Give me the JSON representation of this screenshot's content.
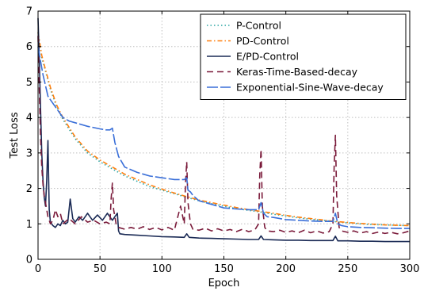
{
  "chart_data": {
    "type": "line",
    "xlabel": "Epoch",
    "ylabel": "Test Loss",
    "xlim": [
      0,
      300
    ],
    "ylim": [
      0,
      7
    ],
    "xticks": [
      "0",
      "50",
      "100",
      "150",
      "200",
      "250",
      "300"
    ],
    "yticks": [
      "0",
      "1",
      "2",
      "3",
      "4",
      "5",
      "6",
      "7"
    ],
    "grid": true,
    "legend_position": "top-right",
    "series": [
      {
        "name": "P-Control",
        "color": "#2ca6a4",
        "style": "dotted",
        "x": [
          0,
          3,
          6,
          10,
          15,
          20,
          30,
          40,
          50,
          60,
          70,
          80,
          90,
          100,
          110,
          120,
          130,
          140,
          150,
          160,
          170,
          180,
          190,
          200,
          210,
          220,
          230,
          240,
          250,
          260,
          270,
          280,
          290,
          300
        ],
        "y": [
          6.4,
          5.7,
          5.3,
          4.8,
          4.3,
          3.95,
          3.4,
          3.0,
          2.75,
          2.55,
          2.35,
          2.2,
          2.05,
          1.95,
          1.85,
          1.75,
          1.65,
          1.57,
          1.5,
          1.43,
          1.38,
          1.33,
          1.27,
          1.22,
          1.17,
          1.13,
          1.1,
          1.06,
          1.03,
          1.0,
          0.98,
          0.97,
          0.96,
          0.95
        ]
      },
      {
        "name": "PD-Control",
        "color": "#ff7f0e",
        "style": "dashdot",
        "x": [
          0,
          3,
          6,
          10,
          15,
          20,
          30,
          40,
          50,
          60,
          70,
          80,
          90,
          100,
          110,
          120,
          130,
          140,
          150,
          160,
          170,
          180,
          190,
          200,
          210,
          220,
          230,
          240,
          250,
          260,
          270,
          280,
          290,
          300
        ],
        "y": [
          6.4,
          5.75,
          5.35,
          4.85,
          4.35,
          4.0,
          3.45,
          3.05,
          2.8,
          2.6,
          2.4,
          2.25,
          2.1,
          1.98,
          1.87,
          1.77,
          1.67,
          1.6,
          1.53,
          1.46,
          1.4,
          1.35,
          1.3,
          1.24,
          1.19,
          1.15,
          1.11,
          1.07,
          1.04,
          1.01,
          0.99,
          0.97,
          0.96,
          0.95
        ]
      },
      {
        "name": "E/PD-Control",
        "color": "#1a2a55",
        "style": "solid",
        "x": [
          0,
          1,
          2,
          3,
          4,
          5,
          6,
          7,
          8,
          9,
          10,
          12,
          14,
          16,
          18,
          20,
          22,
          24,
          26,
          28,
          30,
          33,
          36,
          40,
          44,
          48,
          52,
          56,
          60,
          62,
          64,
          65,
          66,
          70,
          80,
          90,
          100,
          110,
          118,
          120,
          122,
          130,
          140,
          150,
          160,
          170,
          178,
          180,
          182,
          190,
          200,
          210,
          220,
          230,
          238,
          240,
          242,
          250,
          260,
          270,
          280,
          290,
          300
        ],
        "y": [
          6.8,
          5.6,
          4.3,
          3.0,
          2.2,
          1.75,
          1.5,
          2.2,
          3.35,
          1.4,
          1.05,
          0.95,
          0.9,
          1.0,
          0.95,
          1.1,
          1.0,
          1.05,
          1.7,
          1.15,
          1.05,
          1.2,
          1.1,
          1.3,
          1.1,
          1.25,
          1.1,
          1.3,
          1.1,
          1.2,
          1.3,
          0.8,
          0.72,
          0.7,
          0.68,
          0.66,
          0.64,
          0.63,
          0.62,
          0.72,
          0.62,
          0.6,
          0.59,
          0.58,
          0.57,
          0.56,
          0.56,
          0.66,
          0.56,
          0.55,
          0.54,
          0.54,
          0.53,
          0.53,
          0.53,
          0.65,
          0.52,
          0.52,
          0.51,
          0.51,
          0.5,
          0.5,
          0.5
        ]
      },
      {
        "name": "Keras-Time-Based-decay",
        "color": "#7a1a3a",
        "style": "dashed",
        "x": [
          0,
          1,
          2,
          3,
          4,
          5,
          6,
          8,
          10,
          12,
          14,
          16,
          18,
          20,
          25,
          30,
          35,
          40,
          45,
          50,
          55,
          58,
          59,
          60,
          61,
          63,
          65,
          70,
          75,
          80,
          85,
          90,
          95,
          100,
          105,
          110,
          115,
          118,
          119,
          120,
          121,
          123,
          125,
          130,
          135,
          140,
          145,
          150,
          155,
          160,
          165,
          170,
          175,
          178,
          179,
          180,
          181,
          183,
          185,
          190,
          195,
          200,
          205,
          210,
          215,
          220,
          225,
          230,
          235,
          238,
          239,
          240,
          241,
          243,
          245,
          250,
          255,
          260,
          265,
          270,
          275,
          280,
          285,
          290,
          295,
          300
        ],
        "y": [
          6.3,
          4.8,
          3.5,
          2.6,
          2.1,
          1.8,
          1.6,
          1.2,
          1.0,
          1.1,
          1.4,
          1.2,
          1.3,
          1.0,
          1.15,
          1.0,
          1.2,
          1.05,
          1.1,
          1.0,
          1.05,
          1.0,
          1.7,
          2.15,
          1.4,
          1.0,
          0.9,
          0.85,
          0.9,
          0.85,
          0.92,
          0.84,
          0.9,
          0.83,
          0.9,
          0.82,
          1.5,
          1.0,
          2.1,
          2.75,
          1.6,
          1.0,
          0.85,
          0.82,
          0.88,
          0.8,
          0.86,
          0.8,
          0.84,
          0.78,
          0.85,
          0.78,
          0.83,
          1.0,
          2.4,
          3.1,
          1.5,
          0.9,
          0.8,
          0.78,
          0.82,
          0.76,
          0.8,
          0.75,
          0.82,
          0.75,
          0.8,
          0.74,
          0.78,
          1.0,
          2.6,
          3.5,
          1.8,
          0.9,
          0.8,
          0.76,
          0.8,
          0.74,
          0.78,
          0.73,
          0.77,
          0.73,
          0.76,
          0.72,
          0.75,
          0.8
        ]
      },
      {
        "name": "Exponential-Sine-Wave-decay",
        "color": "#3a6fd8",
        "style": "longdash",
        "x": [
          0,
          2,
          4,
          6,
          8,
          10,
          15,
          20,
          25,
          30,
          40,
          50,
          55,
          58,
          60,
          62,
          65,
          70,
          80,
          90,
          100,
          110,
          118,
          120,
          121,
          123,
          125,
          130,
          140,
          150,
          160,
          170,
          178,
          180,
          182,
          185,
          190,
          200,
          210,
          220,
          230,
          238,
          240,
          242,
          245,
          250,
          260,
          270,
          280,
          290,
          300
        ],
        "y": [
          6.0,
          5.6,
          5.2,
          4.9,
          4.6,
          4.5,
          4.25,
          4.0,
          3.9,
          3.85,
          3.75,
          3.68,
          3.65,
          3.65,
          3.7,
          3.3,
          2.9,
          2.6,
          2.45,
          2.35,
          2.3,
          2.25,
          2.25,
          2.3,
          1.95,
          1.9,
          1.8,
          1.65,
          1.55,
          1.45,
          1.42,
          1.4,
          1.4,
          1.6,
          1.3,
          1.2,
          1.18,
          1.12,
          1.1,
          1.08,
          1.07,
          1.07,
          1.3,
          1.0,
          0.95,
          0.92,
          0.9,
          0.89,
          0.88,
          0.87,
          0.87
        ]
      }
    ]
  }
}
